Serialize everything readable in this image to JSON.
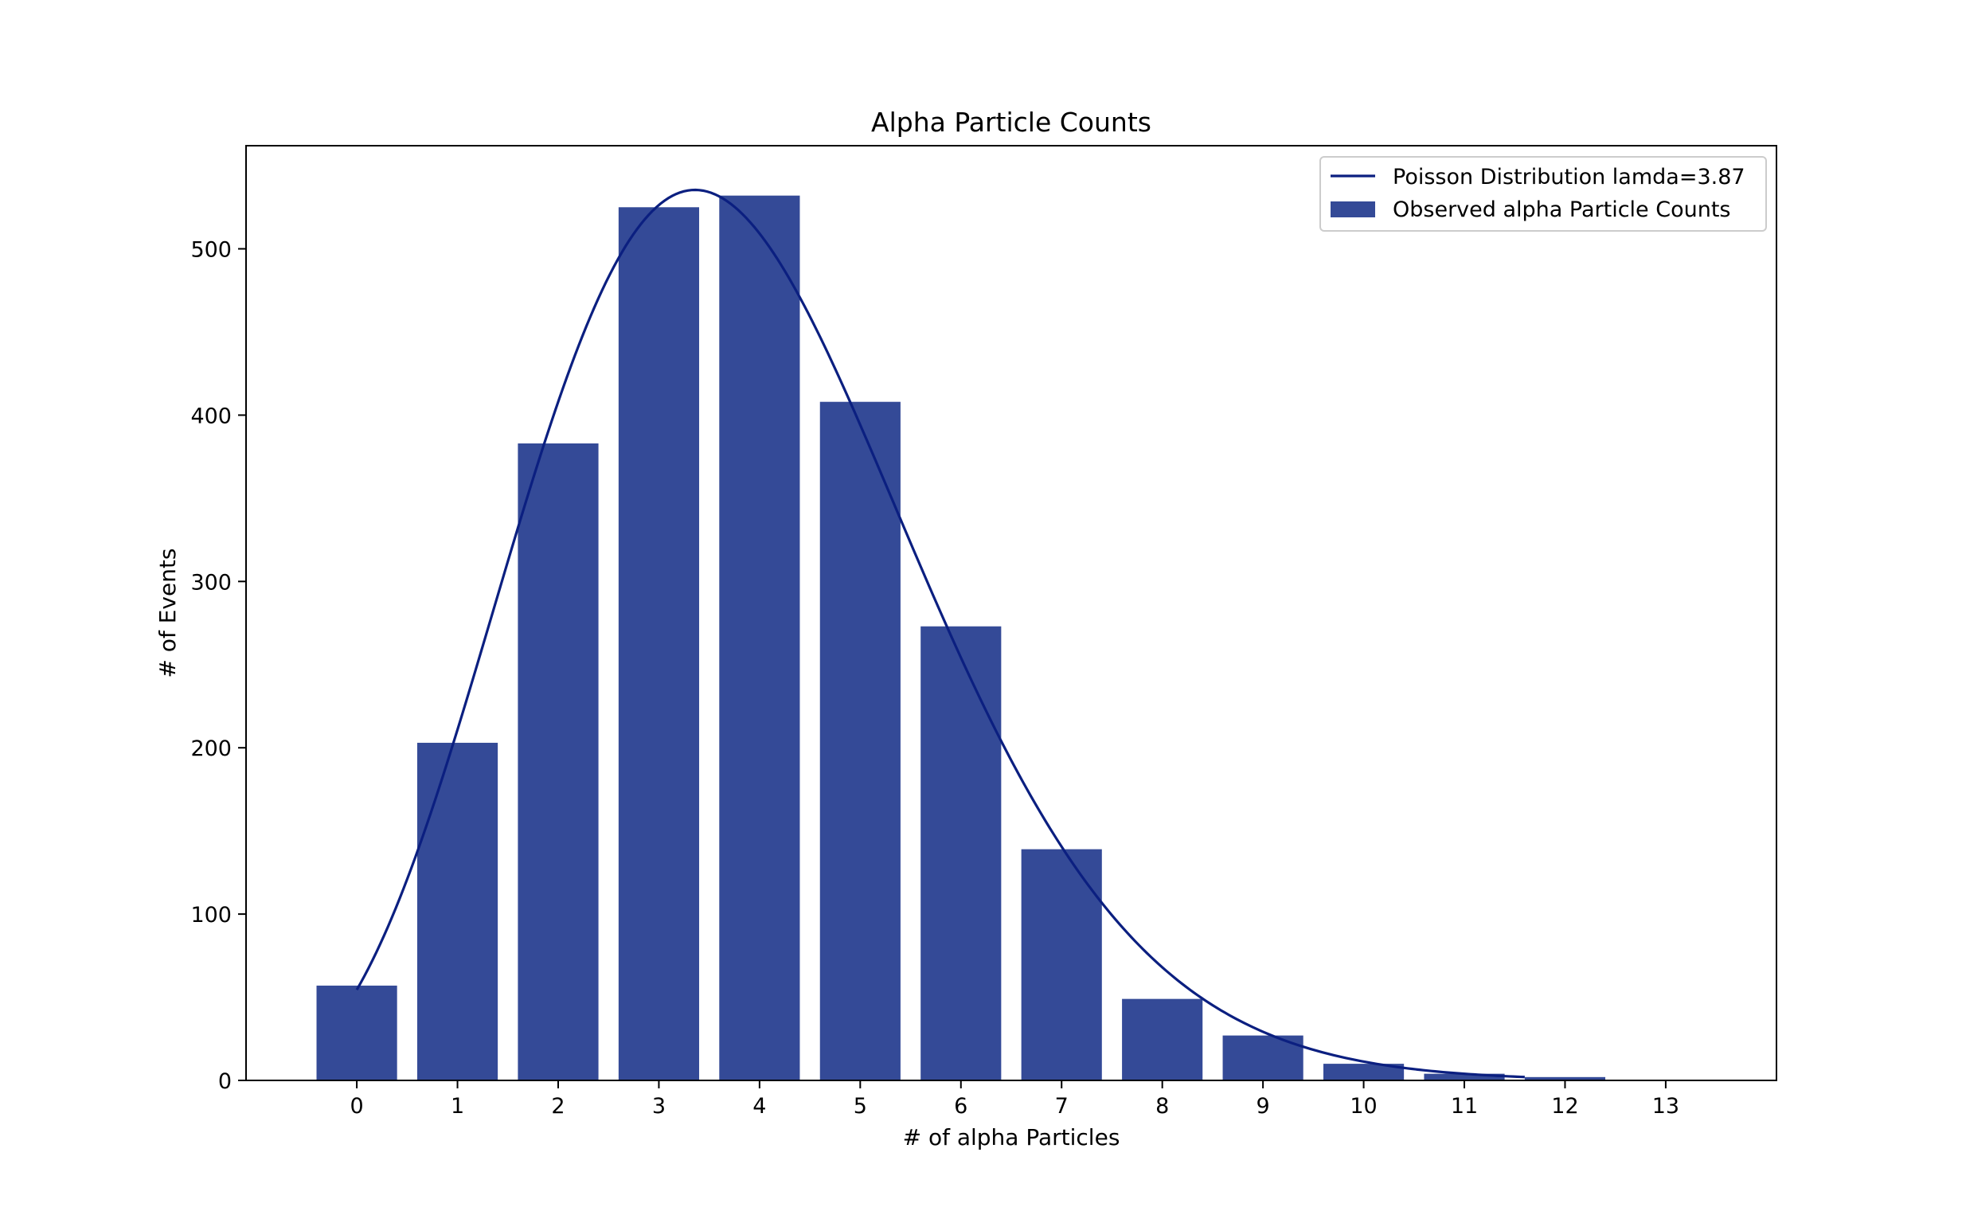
{
  "chart_data": {
    "type": "bar",
    "title": "Alpha Particle Counts",
    "xlabel": "# of alpha Particles",
    "ylabel": "# of Events",
    "xlim": [
      -1.1,
      14.1
    ],
    "ylim": [
      0,
      562
    ],
    "x_ticks": [
      0,
      1,
      2,
      3,
      4,
      5,
      6,
      7,
      8,
      9,
      10,
      11,
      12,
      13
    ],
    "y_ticks": [
      0,
      100,
      200,
      300,
      400,
      500
    ],
    "grid": false,
    "legend_position": "upper right",
    "bar_color": "#344a97",
    "line_color": "#0b1f80",
    "bars": {
      "name": "Observed alpha Particle Counts",
      "x": [
        0,
        1,
        2,
        3,
        4,
        5,
        6,
        7,
        8,
        9,
        10,
        11,
        12,
        13
      ],
      "values": [
        57,
        203,
        383,
        525,
        532,
        408,
        273,
        139,
        49,
        27,
        10,
        4,
        2,
        0
      ]
    },
    "line": {
      "name": "Poisson Distribution lamda=3.87",
      "lambda": 3.87,
      "x_range": [
        0,
        11.6
      ]
    }
  }
}
